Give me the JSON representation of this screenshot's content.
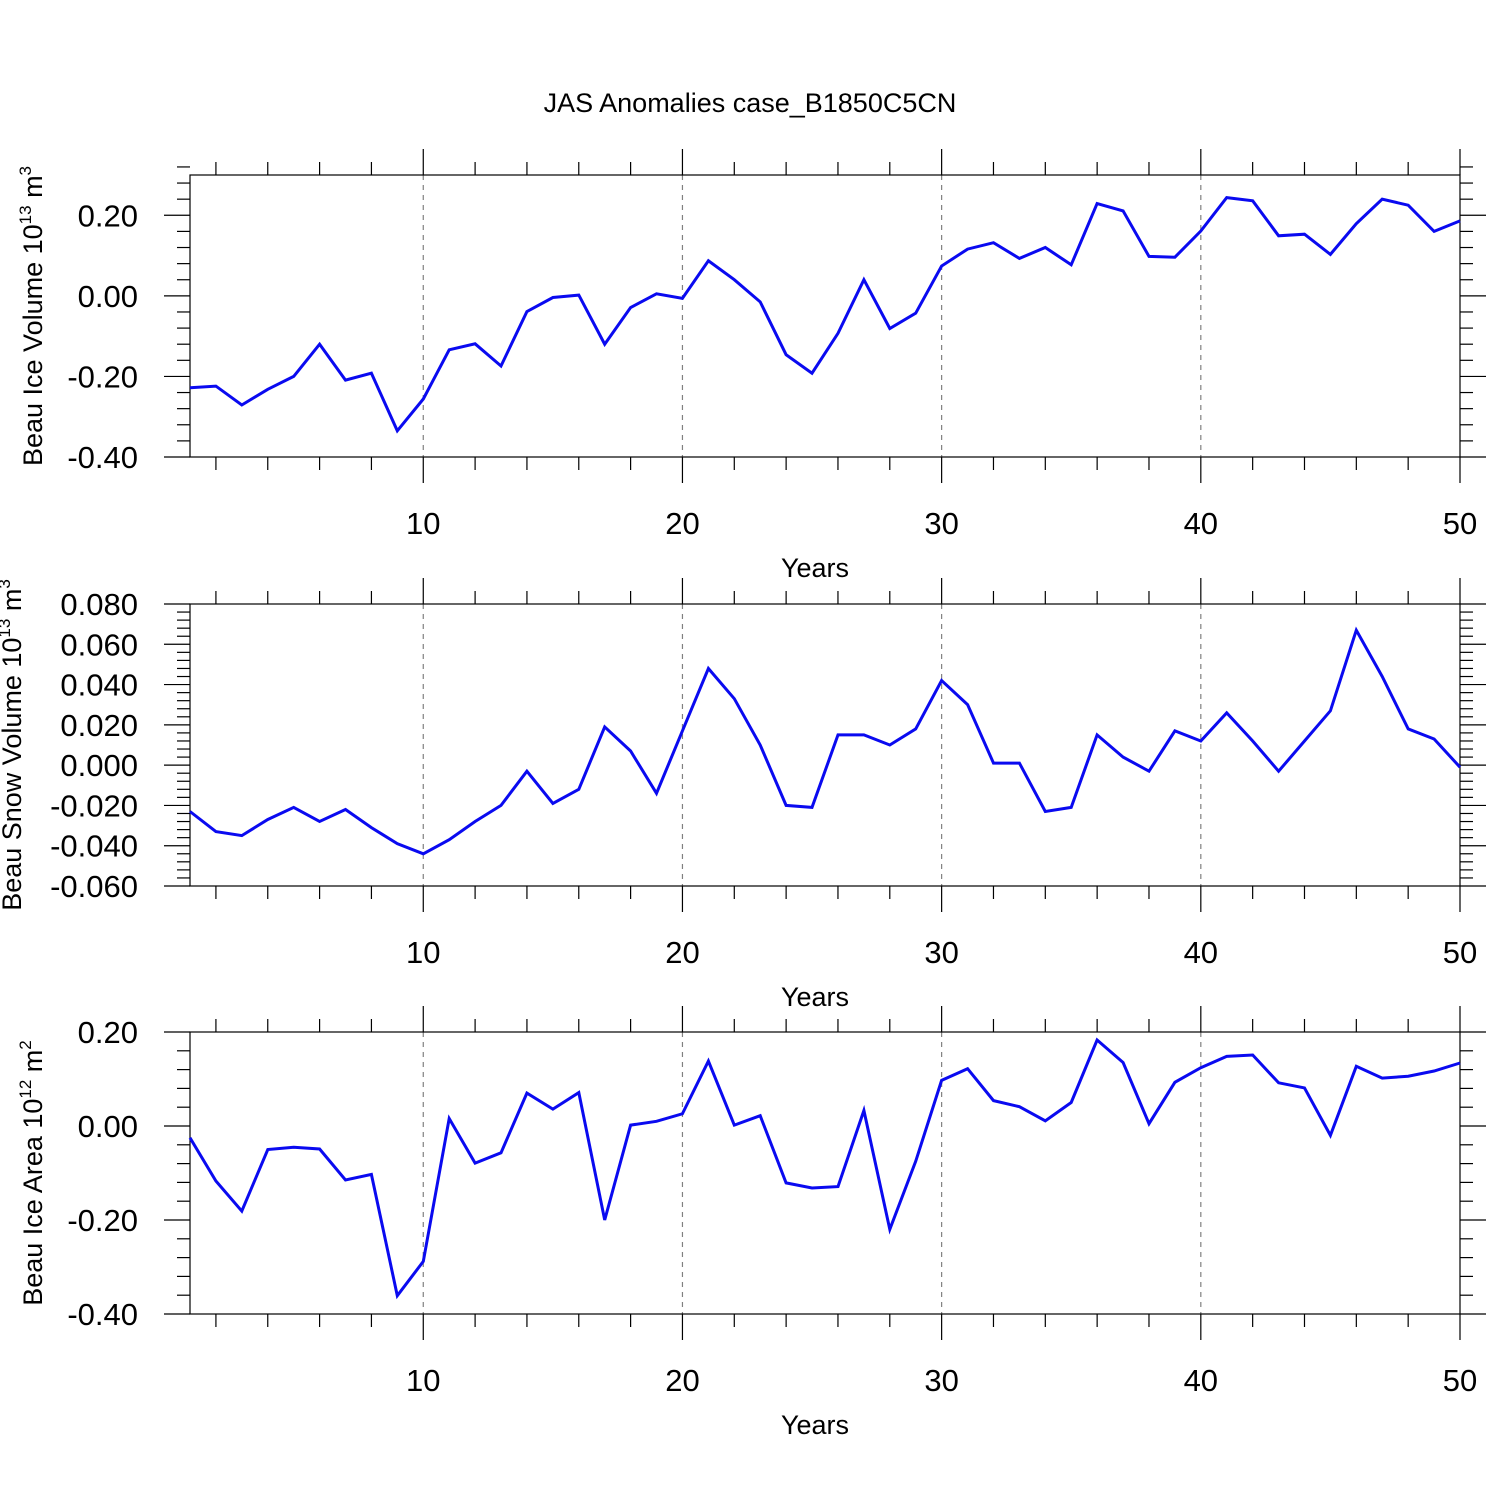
{
  "title": "JAS Anomalies case_B1850C5CN",
  "colors": {
    "line": "#0a0af0",
    "axis": "#000000",
    "grid": "#808080"
  },
  "chart_data": [
    {
      "type": "line",
      "ylabel_main": "Beau Ice Volume 10",
      "ylabel_exp": "13",
      "ylabel_unit": "m",
      "ylabel_unit_exp": "3",
      "xlabel": "Years",
      "xlim": [
        1,
        50
      ],
      "ylim": [
        -0.4,
        0.3
      ],
      "xticks": [
        10,
        20,
        30,
        40,
        50
      ],
      "xtick_labels": [
        "10",
        "20",
        "30",
        "40",
        "50"
      ],
      "yticks": [
        -0.4,
        -0.2,
        0.0,
        0.2
      ],
      "ytick_labels": [
        "-0.40",
        "-0.20",
        "0.00",
        "0.20"
      ],
      "grid": "vertical dashed at major x ticks",
      "x": [
        1,
        2,
        3,
        4,
        5,
        6,
        7,
        8,
        9,
        10,
        11,
        12,
        13,
        14,
        15,
        16,
        17,
        18,
        19,
        20,
        21,
        22,
        23,
        24,
        25,
        26,
        27,
        28,
        29,
        30,
        31,
        32,
        33,
        34,
        35,
        36,
        37,
        38,
        39,
        40,
        41,
        42,
        43,
        44,
        45,
        46,
        47,
        48,
        49,
        50
      ],
      "values": [
        -0.228,
        -0.224,
        -0.271,
        -0.232,
        -0.2,
        -0.12,
        -0.209,
        -0.192,
        -0.335,
        -0.256,
        -0.134,
        -0.119,
        -0.174,
        -0.039,
        -0.004,
        0.002,
        -0.12,
        -0.029,
        0.005,
        -0.006,
        0.087,
        0.04,
        -0.015,
        -0.146,
        -0.192,
        -0.093,
        0.04,
        -0.081,
        -0.043,
        0.074,
        0.116,
        0.132,
        0.093,
        0.12,
        0.077,
        0.229,
        0.211,
        0.098,
        0.096,
        0.161,
        0.244,
        0.236,
        0.149,
        0.153,
        0.103,
        0.179,
        0.24,
        0.225,
        0.16,
        0.186
      ]
    },
    {
      "type": "line",
      "ylabel_main": "Beau Snow Volume 10",
      "ylabel_exp": "13",
      "ylabel_unit": "m",
      "ylabel_unit_exp": "3",
      "xlabel": "Years",
      "xlim": [
        1,
        50
      ],
      "ylim": [
        -0.06,
        0.08
      ],
      "xticks": [
        10,
        20,
        30,
        40,
        50
      ],
      "xtick_labels": [
        "10",
        "20",
        "30",
        "40",
        "50"
      ],
      "yticks": [
        -0.06,
        -0.04,
        -0.02,
        0.0,
        0.02,
        0.04,
        0.06,
        0.08
      ],
      "ytick_labels": [
        "-0.060",
        "-0.040",
        "-0.020",
        "0.000",
        "0.020",
        "0.040",
        "0.060",
        "0.080"
      ],
      "grid": "vertical dashed at major x ticks",
      "x": [
        1,
        2,
        3,
        4,
        5,
        6,
        7,
        8,
        9,
        10,
        11,
        12,
        13,
        14,
        15,
        16,
        17,
        18,
        19,
        20,
        21,
        22,
        23,
        24,
        25,
        26,
        27,
        28,
        29,
        30,
        31,
        32,
        33,
        34,
        35,
        36,
        37,
        38,
        39,
        40,
        41,
        42,
        43,
        44,
        45,
        46,
        47,
        48,
        49,
        50
      ],
      "values": [
        -0.023,
        -0.033,
        -0.035,
        -0.027,
        -0.021,
        -0.028,
        -0.022,
        -0.031,
        -0.039,
        -0.044,
        -0.037,
        -0.028,
        -0.02,
        -0.003,
        -0.019,
        -0.012,
        0.019,
        0.007,
        -0.014,
        0.017,
        0.048,
        0.033,
        0.01,
        -0.02,
        -0.021,
        0.015,
        0.015,
        0.01,
        0.018,
        0.042,
        0.03,
        0.001,
        0.001,
        -0.023,
        -0.021,
        0.015,
        0.004,
        -0.003,
        0.017,
        0.012,
        0.026,
        0.012,
        -0.003,
        0.012,
        0.027,
        0.067,
        0.044,
        0.018,
        0.013,
        -0.001
      ]
    },
    {
      "type": "line",
      "ylabel_main": "Beau Ice Area 10",
      "ylabel_exp": "12",
      "ylabel_unit": "m",
      "ylabel_unit_exp": "2",
      "xlabel": "Years",
      "xlim": [
        1,
        50
      ],
      "ylim": [
        -0.4,
        0.2
      ],
      "xticks": [
        10,
        20,
        30,
        40,
        50
      ],
      "xtick_labels": [
        "10",
        "20",
        "30",
        "40",
        "50"
      ],
      "yticks": [
        -0.4,
        -0.2,
        0.0,
        0.2
      ],
      "ytick_labels": [
        "-0.40",
        "-0.20",
        "0.00",
        "0.20"
      ],
      "grid": "vertical dashed at major x ticks",
      "x": [
        1,
        2,
        3,
        4,
        5,
        6,
        7,
        8,
        9,
        10,
        11,
        12,
        13,
        14,
        15,
        16,
        17,
        18,
        19,
        20,
        21,
        22,
        23,
        24,
        25,
        26,
        27,
        28,
        29,
        30,
        31,
        32,
        33,
        34,
        35,
        36,
        37,
        38,
        39,
        40,
        41,
        42,
        43,
        44,
        45,
        46,
        47,
        48,
        49,
        50
      ],
      "values": [
        -0.025,
        -0.117,
        -0.181,
        -0.05,
        -0.045,
        -0.049,
        -0.115,
        -0.103,
        -0.361,
        -0.288,
        0.016,
        -0.079,
        -0.057,
        0.07,
        0.036,
        0.071,
        -0.2,
        0.002,
        0.01,
        0.026,
        0.138,
        0.002,
        0.022,
        -0.121,
        -0.132,
        -0.129,
        0.033,
        -0.22,
        -0.075,
        0.097,
        0.122,
        0.054,
        0.041,
        0.011,
        0.05,
        0.183,
        0.135,
        0.005,
        0.093,
        0.124,
        0.148,
        0.151,
        0.092,
        0.081,
        -0.02,
        0.127,
        0.102,
        0.106,
        0.117,
        0.134
      ]
    }
  ]
}
